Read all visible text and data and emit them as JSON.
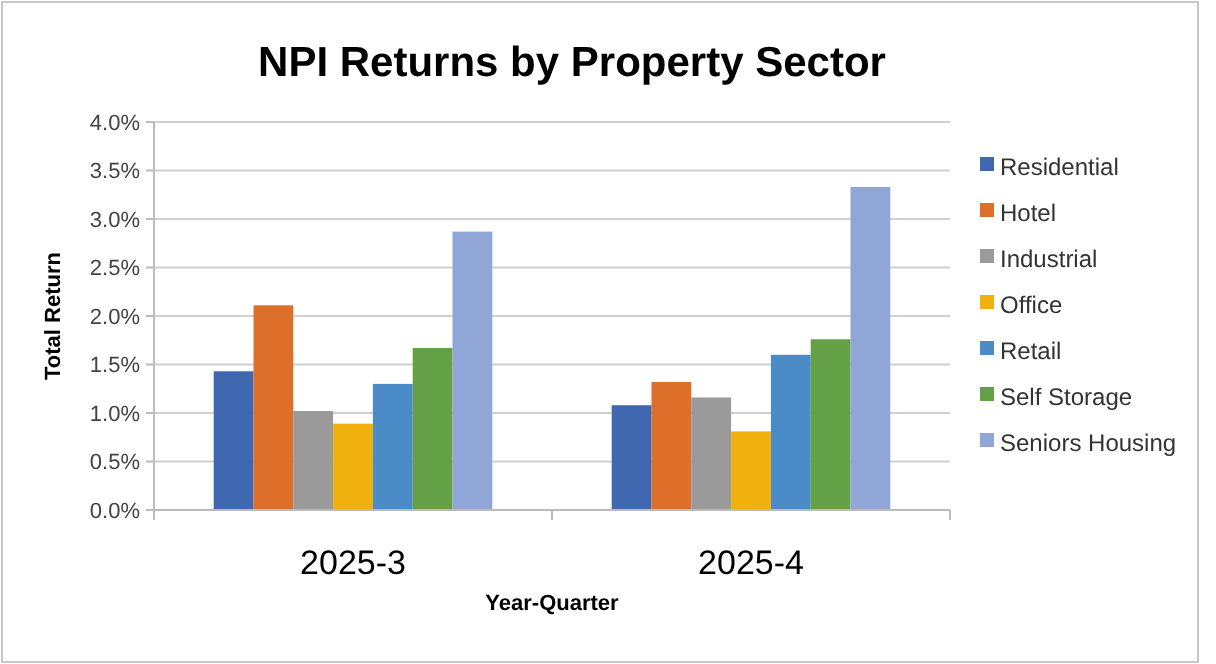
{
  "chart_data": {
    "type": "bar",
    "title": "NPI Returns by Property Sector",
    "xlabel": "Year-Quarter",
    "ylabel": "Total Return",
    "categories": [
      "2025-3",
      "2025-4"
    ],
    "series": [
      {
        "name": "Residential",
        "color": "#3f68b0",
        "values": [
          1.43,
          1.08
        ]
      },
      {
        "name": "Hotel",
        "color": "#dd6f2a",
        "values": [
          2.11,
          1.32
        ]
      },
      {
        "name": "Industrial",
        "color": "#9a9a9a",
        "values": [
          1.02,
          1.16
        ]
      },
      {
        "name": "Office",
        "color": "#f0b10e",
        "values": [
          0.89,
          0.81
        ]
      },
      {
        "name": "Retail",
        "color": "#4b8cc8",
        "values": [
          1.3,
          1.6
        ]
      },
      {
        "name": "Self Storage",
        "color": "#64a146",
        "values": [
          1.67,
          1.76
        ]
      },
      {
        "name": "Seniors Housing",
        "color": "#8fa6d6",
        "values": [
          2.87,
          3.33
        ]
      }
    ],
    "ylim": [
      0,
      4
    ],
    "yticks": [
      {
        "value": 0,
        "label": "0.0%"
      },
      {
        "value": 0.5,
        "label": "0.5%"
      },
      {
        "value": 1,
        "label": "1.0%"
      },
      {
        "value": 1.5,
        "label": "1.5%"
      },
      {
        "value": 2,
        "label": "2.0%"
      },
      {
        "value": 2.5,
        "label": "2.5%"
      },
      {
        "value": 3,
        "label": "3.0%"
      },
      {
        "value": 3.5,
        "label": "3.5%"
      },
      {
        "value": 4,
        "label": "4.0%"
      }
    ],
    "grid": "y",
    "legend": "right"
  }
}
